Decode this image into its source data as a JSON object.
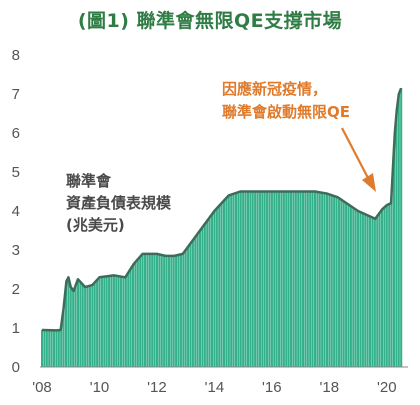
{
  "chart_data": {
    "type": "area",
    "title": "(圖1) 聯準會無限QE支撐市場",
    "ylabel_lines": [
      "聯準會",
      "資產負債表規模",
      "(兆美元)"
    ],
    "annotation_lines": [
      "因應新冠疫情，",
      "聯準會啟動無限QE"
    ],
    "xlim": [
      2008,
      2020.6
    ],
    "ylim": [
      0,
      8
    ],
    "y_ticks": [
      0,
      1,
      2,
      3,
      4,
      5,
      6,
      7,
      8
    ],
    "x_ticks": [
      {
        "value": 2008,
        "label": "'08"
      },
      {
        "value": 2010,
        "label": "'10"
      },
      {
        "value": 2012,
        "label": "'12"
      },
      {
        "value": 2014,
        "label": "'14"
      },
      {
        "value": 2016,
        "label": "'16"
      },
      {
        "value": 2018,
        "label": "'18"
      },
      {
        "value": 2020,
        "label": "'20"
      }
    ],
    "series": [
      {
        "points": [
          [
            2008.0,
            0.95
          ],
          [
            2008.5,
            0.94
          ],
          [
            2008.65,
            0.95
          ],
          [
            2008.75,
            1.5
          ],
          [
            2008.85,
            2.2
          ],
          [
            2008.92,
            2.3
          ],
          [
            2009.0,
            2.05
          ],
          [
            2009.1,
            1.95
          ],
          [
            2009.25,
            2.25
          ],
          [
            2009.5,
            2.05
          ],
          [
            2009.75,
            2.1
          ],
          [
            2010.0,
            2.3
          ],
          [
            2010.5,
            2.35
          ],
          [
            2010.9,
            2.3
          ],
          [
            2011.2,
            2.65
          ],
          [
            2011.5,
            2.9
          ],
          [
            2011.8,
            2.9
          ],
          [
            2012.0,
            2.9
          ],
          [
            2012.3,
            2.85
          ],
          [
            2012.6,
            2.85
          ],
          [
            2012.9,
            2.9
          ],
          [
            2013.0,
            3.0
          ],
          [
            2013.5,
            3.5
          ],
          [
            2014.0,
            4.0
          ],
          [
            2014.5,
            4.4
          ],
          [
            2014.9,
            4.5
          ],
          [
            2015.5,
            4.5
          ],
          [
            2016.0,
            4.5
          ],
          [
            2016.5,
            4.5
          ],
          [
            2017.0,
            4.5
          ],
          [
            2017.5,
            4.5
          ],
          [
            2017.9,
            4.45
          ],
          [
            2018.3,
            4.35
          ],
          [
            2018.7,
            4.15
          ],
          [
            2019.0,
            4.0
          ],
          [
            2019.3,
            3.9
          ],
          [
            2019.6,
            3.8
          ],
          [
            2019.85,
            4.05
          ],
          [
            2020.0,
            4.15
          ],
          [
            2020.15,
            4.2
          ],
          [
            2020.2,
            4.9
          ],
          [
            2020.28,
            6.0
          ],
          [
            2020.35,
            6.6
          ],
          [
            2020.42,
            7.0
          ],
          [
            2020.5,
            7.15
          ]
        ]
      }
    ],
    "colors": {
      "bars": "#34b18a",
      "line": "#3f6b59",
      "title": "#2f7d45",
      "annotation": "#e07b2c",
      "axis_text": "#555555",
      "ylabel_text": "#4a4a4a"
    }
  }
}
